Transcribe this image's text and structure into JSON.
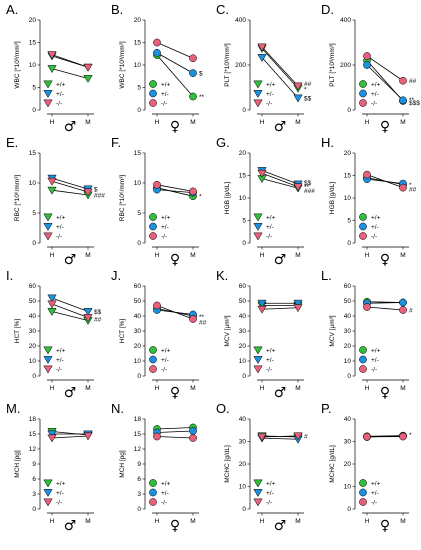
{
  "colors": {
    "wt": "#2fbf3a",
    "het": "#1e90e0",
    "ko": "#e8607a",
    "axis": "#000000",
    "line": "#000000"
  },
  "legend_labels": [
    "+/+",
    "+/-",
    "-/-"
  ],
  "chart_data": [
    {
      "panel": "A.",
      "type": "line",
      "categories": [
        "H",
        "M"
      ],
      "ylabel": "WBC [*10³/mm³]",
      "yticks": [
        "0",
        "5",
        "10",
        "15",
        "20"
      ],
      "ylim": [
        0,
        20
      ],
      "sex": "♂",
      "legend_shape": "tri",
      "series": [
        {
          "name": "+/+",
          "values": [
            9.2,
            7.0
          ]
        },
        {
          "name": "+/-",
          "values": [
            12.0,
            9.5
          ]
        },
        {
          "name": "-/-",
          "values": [
            12.3,
            9.5
          ]
        }
      ],
      "sig": []
    },
    {
      "panel": "B.",
      "type": "line",
      "categories": [
        "H",
        "M"
      ],
      "ylabel": "WBC [*10³/mm³]",
      "yticks": [
        "0",
        "5",
        "10",
        "15",
        "20"
      ],
      "ylim": [
        0,
        20
      ],
      "sex": "♀",
      "legend_shape": "circle",
      "series": [
        {
          "name": "+/+",
          "values": [
            12.2,
            3.0
          ]
        },
        {
          "name": "+/-",
          "values": [
            12.7,
            8.2
          ]
        },
        {
          "name": "-/-",
          "values": [
            15.0,
            11.5
          ]
        }
      ],
      "sig": [
        {
          "text": "$",
          "value": 8.2
        },
        {
          "text": "**",
          "value": 3.0
        }
      ]
    },
    {
      "panel": "C.",
      "type": "line",
      "categories": [
        "H",
        "M"
      ],
      "ylabel": "PLT [*10³/mm³]",
      "yticks": [
        "0",
        "200",
        "400"
      ],
      "ylim": [
        0,
        600
      ],
      "sex": "♂",
      "legend_shape": "tri",
      "series": [
        {
          "name": "+/+",
          "values": [
            410,
            145
          ]
        },
        {
          "name": "+/-",
          "values": [
            350,
            80
          ]
        },
        {
          "name": "-/-",
          "values": [
            420,
            160
          ]
        }
      ],
      "sig": [
        {
          "text": "##",
          "value": 175
        },
        {
          "text": "*",
          "value": 140
        },
        {
          "text": "$$",
          "value": 80
        }
      ]
    },
    {
      "panel": "D.",
      "type": "line",
      "categories": [
        "H",
        "M"
      ],
      "ylabel": "PLT [*10³/mm³]",
      "yticks": [
        "0",
        "200",
        "400"
      ],
      "ylim": [
        0,
        600
      ],
      "sex": "♀",
      "legend_shape": "circle",
      "series": [
        {
          "name": "+/+",
          "values": [
            330,
            60
          ]
        },
        {
          "name": "+/-",
          "values": [
            300,
            65
          ]
        },
        {
          "name": "-/-",
          "values": [
            360,
            195
          ]
        }
      ],
      "sig": [
        {
          "text": "##",
          "value": 195
        },
        {
          "text": "**",
          "value": 70
        },
        {
          "text": "$$$",
          "value": 50
        }
      ]
    },
    {
      "panel": "E.",
      "type": "line",
      "categories": [
        "H",
        "M"
      ],
      "ylabel": "RBC [*10⁶/mm³]",
      "yticks": [
        "0",
        "5",
        "10",
        "15"
      ],
      "ylim": [
        0,
        15
      ],
      "sex": "♂",
      "legend_shape": "tri",
      "series": [
        {
          "name": "+/+",
          "values": [
            8.8,
            8.0
          ]
        },
        {
          "name": "+/-",
          "values": [
            10.8,
            9.0
          ]
        },
        {
          "name": "-/-",
          "values": [
            10.3,
            8.5
          ]
        }
      ],
      "sig": [
        {
          "text": "$",
          "value": 9.0
        },
        {
          "text": "###",
          "value": 8.0
        }
      ]
    },
    {
      "panel": "F.",
      "type": "line",
      "categories": [
        "H",
        "M"
      ],
      "ylabel": "RBC [*10⁶/mm³]",
      "yticks": [
        "0",
        "5",
        "10",
        "15"
      ],
      "ylim": [
        0,
        15
      ],
      "sex": "♀",
      "legend_shape": "circle",
      "series": [
        {
          "name": "+/+",
          "values": [
            9.2,
            7.8
          ]
        },
        {
          "name": "+/-",
          "values": [
            8.9,
            8.4
          ]
        },
        {
          "name": "-/-",
          "values": [
            9.7,
            8.6
          ]
        }
      ],
      "sig": [
        {
          "text": "*",
          "value": 7.8
        }
      ]
    },
    {
      "panel": "G.",
      "type": "line",
      "categories": [
        "H",
        "M"
      ],
      "ylabel": "HGB [g/dL]",
      "yticks": [
        "0",
        "5",
        "10",
        "15",
        "20"
      ],
      "ylim": [
        0,
        20
      ],
      "sex": "♂",
      "legend_shape": "tri",
      "series": [
        {
          "name": "+/+",
          "values": [
            14.3,
            12.2
          ]
        },
        {
          "name": "+/-",
          "values": [
            16.1,
            13.1
          ]
        },
        {
          "name": "-/-",
          "values": [
            15.5,
            12.5
          ]
        }
      ],
      "sig": [
        {
          "text": "$$",
          "value": 13.4
        },
        {
          "text": "**",
          "value": 12.5
        },
        {
          "text": "###",
          "value": 11.6
        }
      ]
    },
    {
      "panel": "H.",
      "type": "line",
      "categories": [
        "H",
        "M"
      ],
      "ylabel": "HGB [g/dL]",
      "yticks": [
        "0",
        "5",
        "10",
        "15",
        "20"
      ],
      "ylim": [
        0,
        20
      ],
      "sex": "♀",
      "legend_shape": "circle",
      "series": [
        {
          "name": "+/+",
          "values": [
            14.5,
            13.0
          ]
        },
        {
          "name": "+/-",
          "values": [
            14.2,
            13.2
          ]
        },
        {
          "name": "-/-",
          "values": [
            15.2,
            12.3
          ]
        }
      ],
      "sig": [
        {
          "text": "*",
          "value": 13.0
        },
        {
          "text": "##",
          "value": 12.0
        }
      ]
    },
    {
      "panel": "I.",
      "type": "line",
      "categories": [
        "H",
        "M"
      ],
      "ylabel": "HCT [%]",
      "yticks": [
        "0",
        "10",
        "20",
        "30",
        "40",
        "50",
        "60"
      ],
      "ylim": [
        0,
        60
      ],
      "sex": "♂",
      "legend_shape": "tri",
      "series": [
        {
          "name": "+/+",
          "values": [
            43,
            37
          ]
        },
        {
          "name": "+/-",
          "values": [
            52,
            43
          ]
        },
        {
          "name": "-/-",
          "values": [
            48,
            39
          ]
        }
      ],
      "sig": [
        {
          "text": "$$",
          "value": 43
        },
        {
          "text": "##",
          "value": 38
        }
      ]
    },
    {
      "panel": "J.",
      "type": "line",
      "categories": [
        "H",
        "M"
      ],
      "ylabel": "HCT [%]",
      "yticks": [
        "0",
        "10",
        "20",
        "30",
        "40",
        "50",
        "60"
      ],
      "ylim": [
        0,
        60
      ],
      "sex": "♀",
      "legend_shape": "circle",
      "series": [
        {
          "name": "+/+",
          "values": [
            45,
            40
          ]
        },
        {
          "name": "+/-",
          "values": [
            44,
            41
          ]
        },
        {
          "name": "-/-",
          "values": [
            47,
            38
          ]
        }
      ],
      "sig": [
        {
          "text": "**",
          "value": 39.5
        },
        {
          "text": "##",
          "value": 36
        }
      ]
    },
    {
      "panel": "K.",
      "type": "line",
      "categories": [
        "H",
        "M"
      ],
      "ylabel": "MCV [µm³]",
      "yticks": [
        "0",
        "10",
        "20",
        "30",
        "40",
        "50",
        "60"
      ],
      "ylim": [
        0,
        60
      ],
      "sex": "♂",
      "legend_shape": "tri",
      "series": [
        {
          "name": "+/+",
          "values": [
            47,
            47
          ]
        },
        {
          "name": "+/-",
          "values": [
            48.5,
            48.5
          ]
        },
        {
          "name": "-/-",
          "values": [
            44.5,
            45.5
          ]
        }
      ],
      "sig": []
    },
    {
      "panel": "L.",
      "type": "line",
      "categories": [
        "H",
        "M"
      ],
      "ylabel": "MCV [µm³]",
      "yticks": [
        "0",
        "10",
        "20",
        "30",
        "40",
        "50",
        "60"
      ],
      "ylim": [
        0,
        60
      ],
      "sex": "♀",
      "legend_shape": "circle",
      "series": [
        {
          "name": "+/+",
          "values": [
            49.5,
            49.0
          ]
        },
        {
          "name": "+/-",
          "values": [
            48.5,
            49.0
          ]
        },
        {
          "name": "-/-",
          "values": [
            46,
            44
          ]
        }
      ],
      "sig": [
        {
          "text": "#",
          "value": 44
        }
      ]
    },
    {
      "panel": "M.",
      "type": "line",
      "categories": [
        "H",
        "M"
      ],
      "ylabel": "MCH [pg]",
      "yticks": [
        "0",
        "3",
        "6",
        "9",
        "12",
        "15",
        "18"
      ],
      "ylim": [
        0,
        18
      ],
      "sex": "♂",
      "legend_shape": "tri",
      "series": [
        {
          "name": "+/+",
          "values": [
            15.5,
            14.8
          ]
        },
        {
          "name": "+/-",
          "values": [
            15.0,
            15.0
          ]
        },
        {
          "name": "-/-",
          "values": [
            14.2,
            14.6
          ]
        }
      ],
      "sig": []
    },
    {
      "panel": "N.",
      "type": "line",
      "categories": [
        "H",
        "M"
      ],
      "ylabel": "MCH [pg]",
      "yticks": [
        "0",
        "3",
        "6",
        "9",
        "12",
        "15",
        "18"
      ],
      "ylim": [
        0,
        18
      ],
      "sex": "♀",
      "legend_shape": "circle",
      "series": [
        {
          "name": "+/+",
          "values": [
            16.0,
            16.3
          ]
        },
        {
          "name": "+/-",
          "values": [
            15.3,
            15.6
          ]
        },
        {
          "name": "-/-",
          "values": [
            14.5,
            14.2
          ]
        }
      ],
      "sig": []
    },
    {
      "panel": "O.",
      "type": "line",
      "categories": [
        "H",
        "M"
      ],
      "ylabel": "MCHC [g/dL]",
      "yticks": [
        "0",
        "10",
        "20",
        "30",
        "40"
      ],
      "ylim": [
        0,
        40
      ],
      "sex": "♂",
      "legend_shape": "tri",
      "series": [
        {
          "name": "+/+",
          "values": [
            32.5,
            32.0
          ]
        },
        {
          "name": "+/-",
          "values": [
            31.5,
            31.0
          ]
        },
        {
          "name": "-/-",
          "values": [
            32.0,
            32.5
          ]
        }
      ],
      "sig": [
        {
          "text": "#",
          "value": 32.5
        }
      ]
    },
    {
      "panel": "P.",
      "type": "line",
      "categories": [
        "H",
        "M"
      ],
      "ylabel": "MCHC [g/dL]",
      "yticks": [
        "0",
        "10",
        "20",
        "30",
        "40"
      ],
      "ylim": [
        0,
        40
      ],
      "sex": "♀",
      "legend_shape": "circle",
      "series": [
        {
          "name": "+/+",
          "values": [
            32.3,
            32.6
          ]
        },
        {
          "name": "+/-",
          "values": [
            32.0,
            32.4
          ]
        },
        {
          "name": "-/-",
          "values": [
            32.1,
            32.2
          ]
        }
      ],
      "sig": [
        {
          "text": "*",
          "value": 33.0
        }
      ]
    }
  ]
}
